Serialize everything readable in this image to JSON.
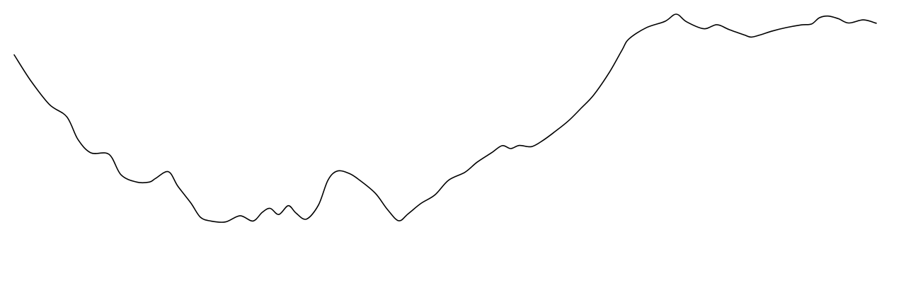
{
  "chart_data": {
    "type": "line",
    "title": "",
    "xlabel": "",
    "ylabel": "",
    "grid": false,
    "legend": "none",
    "axes_visible": false,
    "xlim": [
      0,
      100
    ],
    "ylim": [
      0,
      100
    ],
    "series": [
      {
        "color": "#000000",
        "x": [
          0,
          1.9,
          4.1,
          6.1,
          7.4,
          8.9,
          11.0,
          12.4,
          14.2,
          15.7,
          16.4,
          17.9,
          19.0,
          20.5,
          21.6,
          22.8,
          24.5,
          26.2,
          27.7,
          28.8,
          29.7,
          30.7,
          31.8,
          32.7,
          33.9,
          35.3,
          36.4,
          37.5,
          38.9,
          40.1,
          41.9,
          43.3,
          44.6,
          45.7,
          47.2,
          48.8,
          50.4,
          52.3,
          53.7,
          55.4,
          56.6,
          57.6,
          58.6,
          60.0,
          61.3,
          62.7,
          64.3,
          65.8,
          67.2,
          69.0,
          70.5,
          71.3,
          73.3,
          75.5,
          76.8,
          78.0,
          80.0,
          81.5,
          82.9,
          84.7,
          85.5,
          86.6,
          88.0,
          89.6,
          91.3,
          92.5,
          93.4,
          94.4,
          95.6,
          96.8,
          98.5,
          100.0
        ],
        "y": [
          83.0,
          72.3,
          62.2,
          57.1,
          47.6,
          42.0,
          41.4,
          32.8,
          29.8,
          29.8,
          31.3,
          34.1,
          28.0,
          21.0,
          15.1,
          13.5,
          13.1,
          15.7,
          13.5,
          17.2,
          18.8,
          16.2,
          19.9,
          16.8,
          14.3,
          20.2,
          30.6,
          34.4,
          33.3,
          30.5,
          25.1,
          18.3,
          13.6,
          16.5,
          20.9,
          24.4,
          30.6,
          33.9,
          38.1,
          42.1,
          45.0,
          43.8,
          45.1,
          44.6,
          47.1,
          50.8,
          55.4,
          60.8,
          66.1,
          75.4,
          84.9,
          89.6,
          94.3,
          97.0,
          100.0,
          96.8,
          93.9,
          95.6,
          93.6,
          91.3,
          90.4,
          91.4,
          93.0,
          94.4,
          95.5,
          95.9,
          98.5,
          99.2,
          98.1,
          96.3,
          97.6,
          96.2
        ]
      }
    ]
  }
}
